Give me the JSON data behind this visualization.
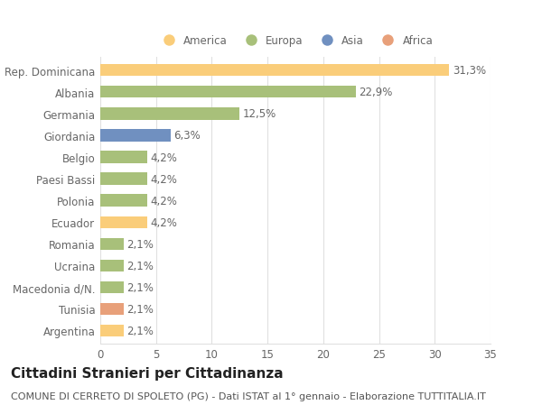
{
  "countries": [
    "Rep. Dominicana",
    "Albania",
    "Germania",
    "Giordania",
    "Belgio",
    "Paesi Bassi",
    "Polonia",
    "Ecuador",
    "Romania",
    "Ucraina",
    "Macedonia d/N.",
    "Tunisia",
    "Argentina"
  ],
  "values": [
    31.3,
    22.9,
    12.5,
    6.3,
    4.2,
    4.2,
    4.2,
    4.2,
    2.1,
    2.1,
    2.1,
    2.1,
    2.1
  ],
  "labels": [
    "31,3%",
    "22,9%",
    "12,5%",
    "6,3%",
    "4,2%",
    "4,2%",
    "4,2%",
    "4,2%",
    "2,1%",
    "2,1%",
    "2,1%",
    "2,1%",
    "2,1%"
  ],
  "colors": [
    "#FACD7A",
    "#A8C07A",
    "#A8C07A",
    "#7090C0",
    "#A8C07A",
    "#A8C07A",
    "#A8C07A",
    "#FACD7A",
    "#A8C07A",
    "#A8C07A",
    "#A8C07A",
    "#E8A07A",
    "#FACD7A"
  ],
  "legend_labels": [
    "America",
    "Europa",
    "Asia",
    "Africa"
  ],
  "legend_colors": [
    "#FACD7A",
    "#A8C07A",
    "#7090C0",
    "#E8A07A"
  ],
  "title": "Cittadini Stranieri per Cittadinanza",
  "subtitle": "COMUNE DI CERRETO DI SPOLETO (PG) - Dati ISTAT al 1° gennaio - Elaborazione TUTTITALIA.IT",
  "xlim": [
    0,
    35
  ],
  "xticks": [
    0,
    5,
    10,
    15,
    20,
    25,
    30,
    35
  ],
  "bg_color": "#FFFFFF",
  "grid_color": "#E0E0E0",
  "bar_height": 0.55,
  "label_fontsize": 8.5,
  "tick_fontsize": 8.5,
  "title_fontsize": 11,
  "subtitle_fontsize": 8
}
